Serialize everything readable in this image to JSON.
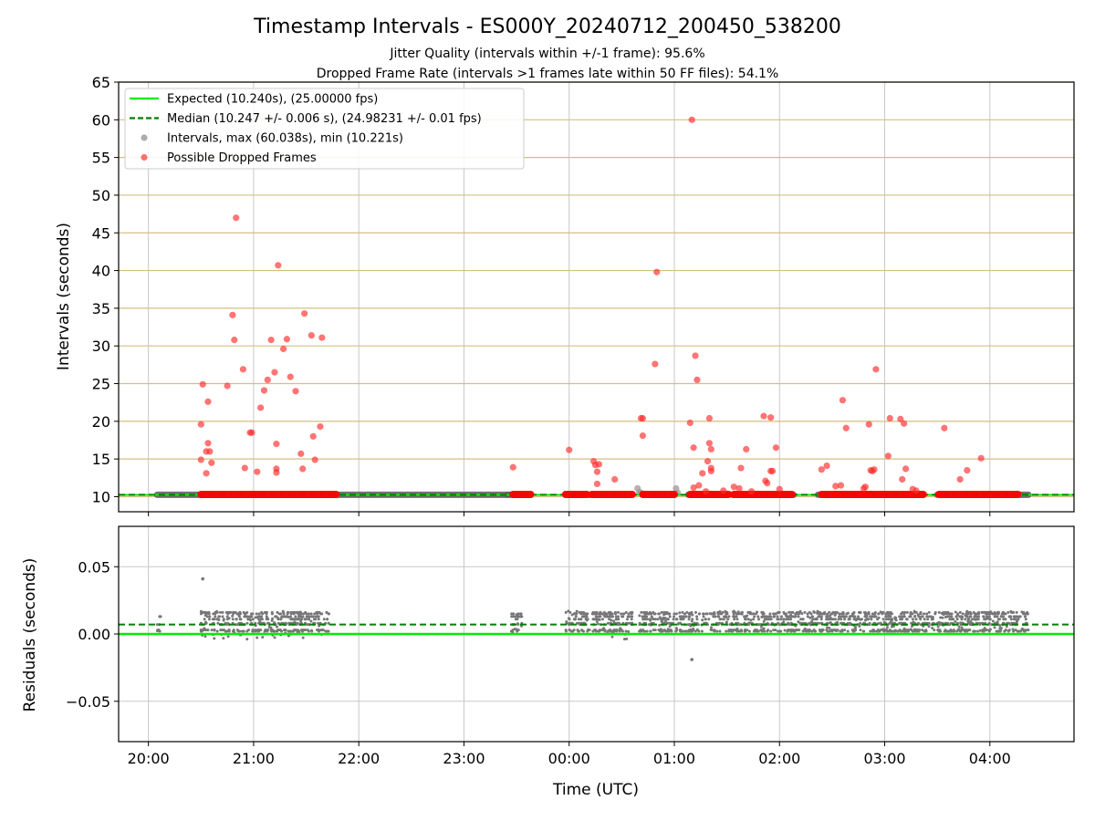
{
  "chart_data": [
    {
      "type": "scatter",
      "title": "Timestamp Intervals - ES000Y_20240712_200450_538200",
      "subtitle_1": "Jitter Quality (intervals within +/-1 frame): 95.6%",
      "subtitle_2": "Dropped Frame Rate (intervals >1 frames late within 50 FF files): 54.1%",
      "ylabel": "Intervals (seconds)",
      "xlabel": "",
      "ylim": [
        8,
        65
      ],
      "xlim": [
        "19:43",
        "04:48"
      ],
      "yticks": [
        10,
        15,
        20,
        25,
        30,
        35,
        40,
        45,
        50,
        55,
        60,
        65
      ],
      "grid": "horizontal lines at y ticks, vertical lines at hour ticks",
      "legend_position": "upper-left",
      "colors": {
        "expected": "#00ee00",
        "median": "#008000",
        "intervals": "#999999",
        "dropped": "#ff3333",
        "hgrid": "#d4bf80",
        "vgrid": "#c8c8c8"
      },
      "series": [
        {
          "name": "Expected (10.240s), (25.00000 fps)",
          "kind": "hline",
          "value": 10.24
        },
        {
          "name": "Median (10.247 +/- 0.006 s), (24.98231 +/- 0.01 fps)",
          "kind": "hline-dashed",
          "value": 10.247
        },
        {
          "name": "Intervals, max (60.038s), min (10.221s)",
          "kind": "dense-band",
          "segments": [
            [
              "20:05",
              "21:46"
            ],
            [
              "21:46",
              "23:25"
            ],
            [
              "23:25",
              "23:38"
            ],
            [
              "23:58",
              "00:12"
            ],
            [
              "00:12",
              "00:36"
            ],
            [
              "00:42",
              "01:00"
            ],
            [
              "01:08",
              "01:30"
            ],
            [
              "01:33",
              "02:08"
            ],
            [
              "02:22",
              "03:22"
            ],
            [
              "03:30",
              "04:22"
            ]
          ],
          "value": 10.25,
          "points": [
            [
              "00:39",
              11.1
            ],
            [
              "01:01",
              11.1
            ],
            [
              "00:40",
              10.6
            ],
            [
              "00:41",
              10.5
            ],
            [
              "01:02",
              10.5
            ]
          ]
        },
        {
          "name": "Possible Dropped Frames",
          "kind": "scatter",
          "bands": [
            [
              "20:30",
              "21:47"
            ],
            [
              "23:28",
              "23:38"
            ],
            [
              "23:58",
              "00:10"
            ],
            [
              "00:13",
              "00:36"
            ],
            [
              "00:42",
              "01:00"
            ],
            [
              "01:09",
              "01:31"
            ],
            [
              "01:34",
              "02:07"
            ],
            [
              "02:24",
              "03:22"
            ],
            [
              "03:31",
              "04:16"
            ]
          ],
          "points": [
            [
              "20:30",
              19.6
            ],
            [
              "20:30",
              14.9
            ],
            [
              "20:31",
              24.9
            ],
            [
              "20:33",
              13.1
            ],
            [
              "20:33",
              16.0
            ],
            [
              "20:34",
              22.6
            ],
            [
              "20:34",
              17.1
            ],
            [
              "20:35",
              16.0
            ],
            [
              "20:36",
              14.5
            ],
            [
              "20:45",
              24.7
            ],
            [
              "20:48",
              34.1
            ],
            [
              "20:49",
              30.8
            ],
            [
              "20:50",
              47.0
            ],
            [
              "20:54",
              26.9
            ],
            [
              "20:55",
              13.8
            ],
            [
              "20:58",
              18.5
            ],
            [
              "20:59",
              18.5
            ],
            [
              "21:02",
              13.3
            ],
            [
              "21:04",
              21.8
            ],
            [
              "21:06",
              24.1
            ],
            [
              "21:08",
              25.5
            ],
            [
              "21:10",
              30.8
            ],
            [
              "21:12",
              26.5
            ],
            [
              "21:13",
              13.7
            ],
            [
              "21:13",
              17.0
            ],
            [
              "21:13",
              13.2
            ],
            [
              "21:14",
              40.7
            ],
            [
              "21:17",
              29.6
            ],
            [
              "21:19",
              30.9
            ],
            [
              "21:21",
              25.9
            ],
            [
              "21:24",
              24.0
            ],
            [
              "21:27",
              15.7
            ],
            [
              "21:28",
              13.7
            ],
            [
              "21:29",
              34.3
            ],
            [
              "21:33",
              31.4
            ],
            [
              "21:34",
              18.0
            ],
            [
              "21:35",
              14.9
            ],
            [
              "21:38",
              19.3
            ],
            [
              "21:39",
              31.1
            ],
            [
              "23:28",
              13.9
            ],
            [
              "00:00",
              16.2
            ],
            [
              "00:14",
              14.7
            ],
            [
              "00:15",
              14.2
            ],
            [
              "00:16",
              13.3
            ],
            [
              "00:16",
              11.7
            ],
            [
              "00:17",
              14.3
            ],
            [
              "00:26",
              12.3
            ],
            [
              "00:41",
              20.4
            ],
            [
              "00:42",
              20.4
            ],
            [
              "00:42",
              18.1
            ],
            [
              "00:49",
              27.6
            ],
            [
              "00:50",
              39.8
            ],
            [
              "01:09",
              19.8
            ],
            [
              "01:10",
              60.0
            ],
            [
              "01:11",
              16.5
            ],
            [
              "01:11",
              11.2
            ],
            [
              "01:12",
              28.7
            ],
            [
              "01:13",
              25.5
            ],
            [
              "01:14",
              11.5
            ],
            [
              "01:16",
              13.1
            ],
            [
              "01:18",
              10.7
            ],
            [
              "01:19",
              14.7
            ],
            [
              "01:20",
              17.1
            ],
            [
              "01:20",
              20.4
            ],
            [
              "01:21",
              13.4
            ],
            [
              "01:21",
              13.8
            ],
            [
              "01:21",
              16.3
            ],
            [
              "01:28",
              10.8
            ],
            [
              "01:34",
              11.3
            ],
            [
              "01:37",
              11.1
            ],
            [
              "01:38",
              13.8
            ],
            [
              "01:41",
              16.3
            ],
            [
              "01:44",
              10.7
            ],
            [
              "01:51",
              20.7
            ],
            [
              "01:52",
              12.1
            ],
            [
              "01:53",
              11.8
            ],
            [
              "01:55",
              20.5
            ],
            [
              "01:55",
              13.4
            ],
            [
              "01:56",
              13.4
            ],
            [
              "01:58",
              16.5
            ],
            [
              "02:00",
              11.0
            ],
            [
              "02:24",
              13.6
            ],
            [
              "02:27",
              14.1
            ],
            [
              "02:32",
              11.4
            ],
            [
              "02:35",
              11.5
            ],
            [
              "02:36",
              22.8
            ],
            [
              "02:38",
              19.1
            ],
            [
              "02:48",
              11.1
            ],
            [
              "02:49",
              11.3
            ],
            [
              "02:51",
              19.6
            ],
            [
              "02:52",
              13.5
            ],
            [
              "02:53",
              13.4
            ],
            [
              "02:54",
              13.6
            ],
            [
              "02:55",
              26.9
            ],
            [
              "03:02",
              15.4
            ],
            [
              "03:03",
              20.4
            ],
            [
              "03:09",
              20.3
            ],
            [
              "03:10",
              12.3
            ],
            [
              "03:11",
              19.7
            ],
            [
              "03:12",
              13.7
            ],
            [
              "03:16",
              11.0
            ],
            [
              "03:18",
              10.8
            ],
            [
              "03:34",
              19.1
            ],
            [
              "03:43",
              12.3
            ],
            [
              "03:47",
              13.5
            ],
            [
              "03:55",
              15.1
            ]
          ]
        }
      ]
    },
    {
      "type": "scatter",
      "ylabel": "Residuals (seconds)",
      "xlabel": "Time (UTC)",
      "ylim": [
        -0.08,
        0.08
      ],
      "yticks": [
        0.05,
        0.0,
        -0.05
      ],
      "ytick_labels": [
        "0.05",
        "0.00",
        "−0.05"
      ],
      "xticks": [
        "20:00",
        "21:00",
        "22:00",
        "23:00",
        "00:00",
        "01:00",
        "02:00",
        "03:00",
        "04:00"
      ],
      "grid": "on",
      "colors": {
        "expected": "#00ee00",
        "median": "#008000",
        "points": "#777777",
        "grid": "#c8c8c8"
      },
      "series": [
        {
          "kind": "hline",
          "value": 0.0
        },
        {
          "kind": "hline-dashed",
          "value": 0.007
        },
        {
          "kind": "residual-clusters",
          "clusters": [
            {
              "range": [
                "20:05",
                "20:07"
              ],
              "min": 0.002,
              "max": 0.013
            },
            {
              "range": [
                "20:30",
                "21:43"
              ],
              "min": -0.004,
              "max": 0.017
            },
            {
              "range": [
                "23:27",
                "23:33"
              ],
              "min": 0.0,
              "max": 0.015
            },
            {
              "range": [
                "23:58",
                "00:12"
              ],
              "min": 0.002,
              "max": 0.017
            },
            {
              "range": [
                "00:13",
                "00:36"
              ],
              "min": -0.004,
              "max": 0.016
            },
            {
              "range": [
                "00:40",
                "04:22"
              ],
              "min": 0.002,
              "max": 0.017
            }
          ],
          "outliers": [
            [
              "20:31",
              0.041
            ],
            [
              "01:10",
              -0.019
            ]
          ]
        }
      ]
    }
  ]
}
